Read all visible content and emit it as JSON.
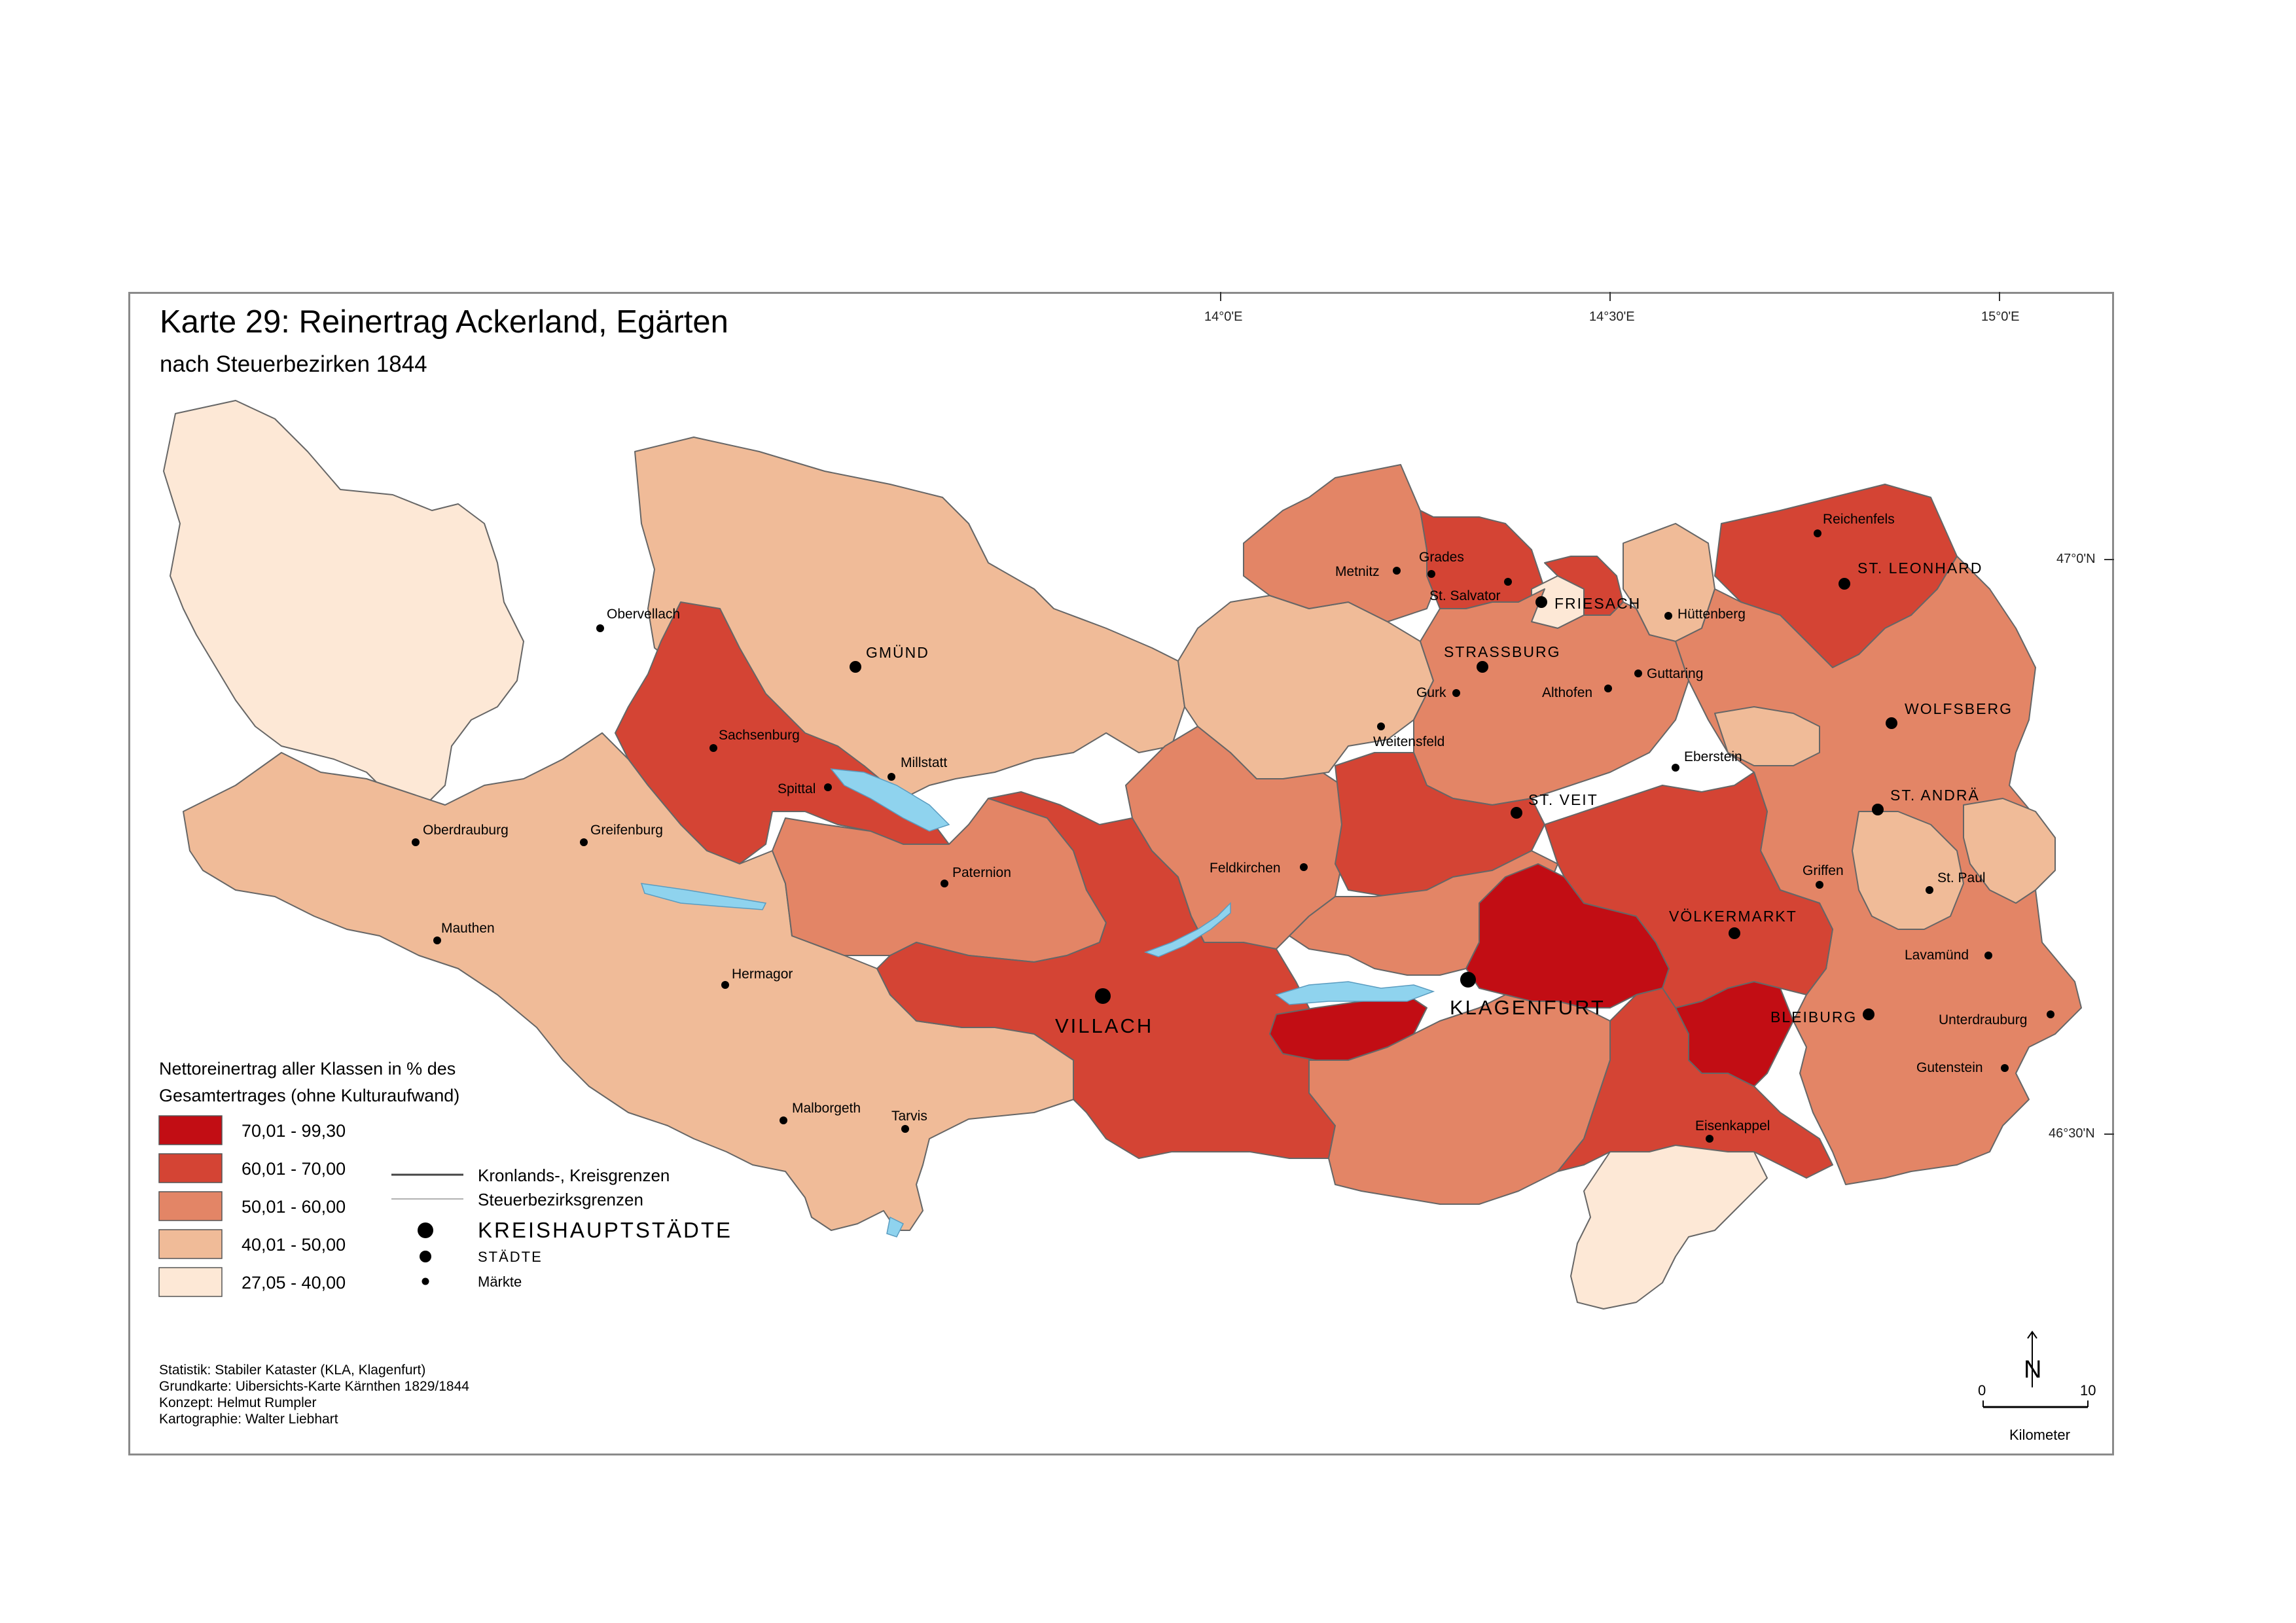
{
  "title": "Karte 29: Reinertrag Ackerland, Egärten",
  "subtitle": "nach Steuerbezirken 1844",
  "graticule": {
    "lon_labels": [
      "14°0'E",
      "14°30'E",
      "15°0'E"
    ],
    "lat_labels": [
      "47°0'N",
      "46°30'N"
    ]
  },
  "legend": {
    "title_line1": "Nettoreinertrag aller Klassen in % des",
    "title_line2": "Gesamtertrages (ohne Kulturaufwand)",
    "classes": [
      {
        "label": "70,01 - 99,30",
        "color": "#c20d14"
      },
      {
        "label": "60,01 - 70,00",
        "color": "#d44434"
      },
      {
        "label": "50,01 - 60,00",
        "color": "#e38566"
      },
      {
        "label": "40,01 - 50,00",
        "color": "#f0bb98"
      },
      {
        "label": "27,05 - 40,00",
        "color": "#fde8d6"
      }
    ],
    "lines": [
      "Kronlands-, Kreisgrenzen",
      "Steuerbezirksgrenzen"
    ],
    "points": [
      "KREISHAUPTSTÄDTE",
      "STÄDTE",
      "Märkte"
    ]
  },
  "credits": [
    "Statistik: Stabiler Kataster (KLA, Klagenfurt)",
    "Grundkarte: Uibersichts-Karte Kärnthen 1829/1844",
    "Konzept: Helmut Rumpler",
    "Kartographie: Walter Liebhart"
  ],
  "scale": {
    "start": "0",
    "end": "10",
    "unit": "Kilometer",
    "north": "N"
  },
  "places": {
    "capitals": [
      "VILLACH",
      "KLAGENFURT"
    ],
    "cities": [
      "GMÜND",
      "FRIESACH",
      "STRASSBURG",
      "ST. LEONHARD",
      "WOLFSBERG",
      "ST. ANDRÄ",
      "ST. VEIT",
      "VÖLKERMARKT",
      "BLEIBURG"
    ],
    "markets": [
      "Obervellach",
      "Sachsenburg",
      "Spittal",
      "Millstatt",
      "Oberdrauburg",
      "Greifenburg",
      "Mauthen",
      "Hermagor",
      "Paternion",
      "Malborgeth",
      "Tarvis",
      "Metnitz",
      "Grades",
      "St. Salvator",
      "Hüttenberg",
      "Reichenfels",
      "Gurk",
      "Althofen",
      "Guttaring",
      "Weitensfeld",
      "Eberstein",
      "Feldkirchen",
      "Griffen",
      "St. Paul",
      "Lavamünd",
      "Unterdrauburg",
      "Gutenstein",
      "Eisenkappel"
    ]
  },
  "colors": {
    "boundary": "#555555",
    "water": "#8fd3ee",
    "frame": "#8a8a8a"
  }
}
